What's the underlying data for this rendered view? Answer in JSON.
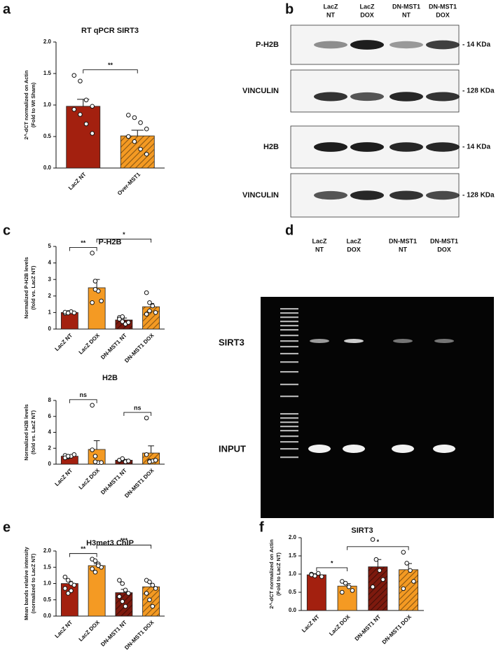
{
  "chart_data": [
    {
      "type": "bar",
      "panel": "a",
      "title": "RT qPCR SIRT3",
      "ylabel": [
        "2^-dCT normalized on Actin",
        "(Fold to Wt Sham)"
      ],
      "categories": [
        "LacZ NT",
        "Over-MST1"
      ],
      "values": [
        0.98,
        0.51
      ],
      "errors": [
        0.11,
        0.09
      ],
      "points": [
        [
          1.47,
          1.38,
          1.08,
          0.98,
          0.93,
          0.85,
          0.7,
          0.55
        ],
        [
          0.84,
          0.8,
          0.72,
          0.62,
          0.5,
          0.42,
          0.3,
          0.22
        ]
      ],
      "colors": [
        "#a3200f",
        "#f49a23"
      ],
      "hatch": [
        false,
        true
      ],
      "ylim": [
        0,
        2
      ],
      "yticks": [
        {
          "value": 0,
          "label": "0.0"
        },
        {
          "value": 0.5,
          "label": "0.5"
        },
        {
          "value": 1,
          "label": "1.0"
        },
        {
          "value": 1.5,
          "label": "1.5"
        },
        {
          "value": 2,
          "label": "2.0"
        }
      ],
      "significance": [
        {
          "between": [
            0,
            1
          ],
          "label": "**"
        }
      ]
    },
    {
      "type": "bar",
      "panel": "c",
      "title": "P-H2B",
      "ylabel": [
        "Normalized P-H2B levels",
        "(fold vs. LacZ NT)"
      ],
      "categories": [
        "LacZ NT",
        "LacZ DOX",
        "DN-MST1 NT",
        "DN-MST1 DOX"
      ],
      "values": [
        1.0,
        2.5,
        0.55,
        1.35
      ],
      "errors": [
        0.04,
        0.5,
        0.12,
        0.2
      ],
      "points": [
        [
          0.95,
          1.0,
          1.05,
          0.98,
          1.02,
          0.97
        ],
        [
          4.6,
          2.9,
          2.3,
          1.7,
          1.6,
          2.4
        ],
        [
          0.7,
          0.75,
          0.3,
          0.4,
          0.6,
          0.45
        ],
        [
          2.2,
          1.6,
          1.4,
          1.0,
          0.9,
          1.1
        ]
      ],
      "colors": [
        "#a3200f",
        "#f49a23",
        "#7d1a0e",
        "#f49a23"
      ],
      "hatch": [
        false,
        false,
        true,
        true
      ],
      "ylim": [
        0,
        5
      ],
      "yticks": [
        0,
        1,
        2,
        3,
        4,
        5
      ],
      "significance": [
        {
          "between": [
            0,
            1
          ],
          "label": "**"
        },
        {
          "between": [
            1,
            3
          ],
          "label": "*"
        }
      ]
    },
    {
      "type": "bar",
      "title": "H2B",
      "ylabel": [
        "Normalized H2B levels",
        "(fold vs. LacZ NT)"
      ],
      "categories": [
        "LacZ NT",
        "LacZ DOX",
        "DN-MST1 NT",
        "DN-MST1 DOX"
      ],
      "values": [
        1.0,
        1.85,
        0.5,
        1.4
      ],
      "errors": [
        0.15,
        1.1,
        0.1,
        0.9
      ],
      "points": [
        [
          1.1,
          0.9,
          1.0,
          1.2,
          0.8,
          1.0
        ],
        [
          7.4,
          1.0,
          0.2,
          0.2,
          1.8,
          0.3
        ],
        [
          0.5,
          0.6,
          0.3,
          0.4,
          0.5,
          0.7
        ],
        [
          5.8,
          0.4,
          0.4,
          0.5,
          1.2,
          0.3
        ]
      ],
      "colors": [
        "#a3200f",
        "#f49a23",
        "#7d1a0e",
        "#f49a23"
      ],
      "hatch": [
        false,
        false,
        true,
        true
      ],
      "ylim": [
        0,
        8
      ],
      "yticks": [
        0,
        2,
        4,
        6,
        8
      ],
      "significance": [
        {
          "between": [
            0,
            1
          ],
          "label": "ns"
        },
        {
          "between": [
            2,
            3
          ],
          "label": "ns"
        }
      ]
    },
    {
      "type": "bar",
      "panel": "e",
      "title": "H3met3 ChIP",
      "ylabel": [
        "Mean bands relative intensity",
        "(normalized to LacZ NT)"
      ],
      "categories": [
        "LacZ NT",
        "LacZ DOX",
        "DN-MST1 NT",
        "DN-MST1 DOX"
      ],
      "values": [
        1.0,
        1.55,
        0.72,
        0.9
      ],
      "errors": [
        0.07,
        0.06,
        0.1,
        0.1
      ],
      "points": [
        [
          1.2,
          1.1,
          1.0,
          0.95,
          0.85,
          0.7,
          0.78
        ],
        [
          1.75,
          1.7,
          1.6,
          1.5,
          1.45,
          1.35,
          1.55
        ],
        [
          1.1,
          1.0,
          0.8,
          0.7,
          0.6,
          0.45,
          0.3
        ],
        [
          1.1,
          1.05,
          0.95,
          0.85,
          0.7,
          0.5,
          0.3
        ]
      ],
      "colors": [
        "#a3200f",
        "#f49a23",
        "#7d1a0e",
        "#f49a23"
      ],
      "hatch": [
        false,
        false,
        true,
        true
      ],
      "ylim": [
        0,
        2
      ],
      "yticks": [
        {
          "value": 0,
          "label": "0.0"
        },
        {
          "value": 0.5,
          "label": "0.5"
        },
        {
          "value": 1,
          "label": "1.0"
        },
        {
          "value": 1.5,
          "label": "1.5"
        },
        {
          "value": 2,
          "label": "2.0"
        }
      ],
      "significance": [
        {
          "between": [
            0,
            1
          ],
          "label": "**"
        },
        {
          "between": [
            1,
            3
          ],
          "label": "***"
        }
      ]
    },
    {
      "type": "bar",
      "panel": "f",
      "title": "SIRT3",
      "ylabel": [
        "2^-dCT normalized on Actin",
        "(Fold to LacZ NT)"
      ],
      "categories": [
        "LacZ NT",
        "LacZ DOX",
        "DN-MST1 NT",
        "DN-MST1 DOX"
      ],
      "values": [
        0.98,
        0.67,
        1.2,
        1.12
      ],
      "errors": [
        0.03,
        0.07,
        0.2,
        0.17
      ],
      "points": [
        [
          1.0,
          0.95,
          1.02,
          0.93,
          0.98
        ],
        [
          0.8,
          0.75,
          0.65,
          0.55,
          0.5
        ],
        [
          1.95,
          1.4,
          1.1,
          0.85,
          0.65
        ],
        [
          1.6,
          1.3,
          1.1,
          0.8,
          0.6
        ]
      ],
      "colors": [
        "#a3200f",
        "#f49a23",
        "#7d1a0e",
        "#f49a23"
      ],
      "hatch": [
        false,
        false,
        true,
        true
      ],
      "ylim": [
        0,
        2
      ],
      "yticks": [
        {
          "value": 0,
          "label": "0.0"
        },
        {
          "value": 0.5,
          "label": "0.5"
        },
        {
          "value": 1,
          "label": "1.0"
        },
        {
          "value": 1.5,
          "label": "1.5"
        },
        {
          "value": 2,
          "label": "2.0"
        }
      ],
      "significance": [
        {
          "between": [
            0,
            1
          ],
          "label": "*"
        },
        {
          "between": [
            1,
            3
          ],
          "label": "*"
        }
      ]
    }
  ],
  "blot": {
    "panel": "b",
    "lanes": [
      [
        "LacZ",
        "NT"
      ],
      [
        "LacZ",
        "DOX"
      ],
      [
        "DN-MST1",
        "NT"
      ],
      [
        "DN-MST1",
        "DOX"
      ]
    ],
    "rows": [
      {
        "label": "P-H2B",
        "marker": "- 14 KDa"
      },
      {
        "label": "VINCULIN",
        "marker": "- 128 KDa"
      },
      {
        "label": "H2B",
        "marker": "- 14 KDa"
      },
      {
        "label": "VINCULIN",
        "marker": "- 128 KDa"
      }
    ]
  },
  "gel": {
    "panel": "d",
    "lanes": [
      [
        "LacZ",
        "NT"
      ],
      [
        "LacZ",
        "DOX"
      ],
      [
        "DN-MST1",
        "NT"
      ],
      [
        "DN-MST1",
        "DOX"
      ]
    ],
    "rows": [
      "SIRT3",
      "INPUT"
    ]
  }
}
